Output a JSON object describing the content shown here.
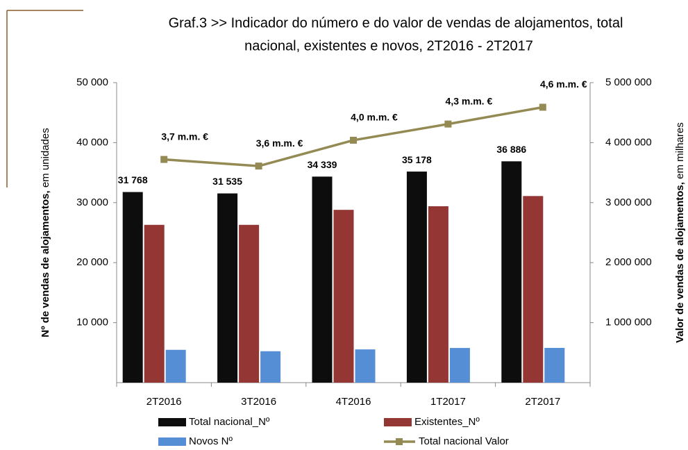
{
  "chart_data": {
    "type": "bar",
    "title": [
      "Graf.3  >> Indicador do número e do valor de vendas de alojamentos, total",
      "nacional, existentes e novos, 2T2016 - 2T2017"
    ],
    "ylabel": {
      "bold": "Nº  de vendas de alojamentos,",
      "normal": "em unidades"
    },
    "y2label": {
      "bold": "Valor de vendas de alojamentos,",
      "normal": "em milhares"
    },
    "categories": [
      "2T2016",
      "3T2016",
      "4T2016",
      "1T2017",
      "2T2017"
    ],
    "series": [
      {
        "name": "Total nacional_Nº",
        "type": "bar",
        "color": "#0d0d0d",
        "values": [
          31768,
          31535,
          34339,
          35178,
          36886
        ],
        "value_labels": [
          "31 768",
          "31 535",
          "34 339",
          "35 178",
          "36 886"
        ]
      },
      {
        "name": "Existentes_Nº",
        "type": "bar",
        "color": "#943634",
        "values": [
          26300,
          26300,
          28800,
          29400,
          31100
        ]
      },
      {
        "name": "Novos Nº",
        "type": "bar",
        "color": "#558ed5",
        "values": [
          5468,
          5235,
          5539,
          5778,
          5786
        ]
      },
      {
        "name": "Total nacional  Valor",
        "type": "line",
        "axis": "y2",
        "color": "#948a54",
        "values": [
          3720000,
          3610000,
          4040000,
          4310000,
          4590000
        ],
        "value_labels": [
          "3,7 m.m. €",
          "3,6 m.m. €",
          "4,0 m.m. €",
          "4,3 m.m. €",
          "4,6 m.m. €"
        ]
      }
    ],
    "ylim": [
      0,
      50000
    ],
    "yticks": [
      {
        "value": 10000,
        "label": "10 000"
      },
      {
        "value": 20000,
        "label": "20 000"
      },
      {
        "value": 30000,
        "label": "30 000"
      },
      {
        "value": 40000,
        "label": "40 000"
      },
      {
        "value": 50000,
        "label": "50 000"
      }
    ],
    "y2lim": [
      0,
      5000000
    ],
    "y2ticks": [
      {
        "value": 1000000,
        "label": "1 000 000"
      },
      {
        "value": 2000000,
        "label": "2 000 000"
      },
      {
        "value": 3000000,
        "label": "3 000 000"
      },
      {
        "value": 4000000,
        "label": "4 000 000"
      },
      {
        "value": 5000000,
        "label": "5 000 000"
      }
    ]
  }
}
